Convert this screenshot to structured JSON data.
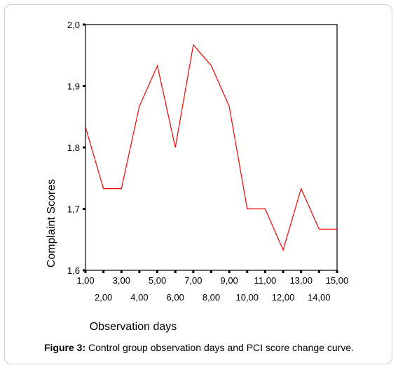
{
  "chart_data": {
    "type": "line",
    "xlabel": "Observation days",
    "ylabel": "Complaint Scores",
    "ylim": [
      1.6,
      2.0
    ],
    "xlim": [
      1,
      15
    ],
    "grid": false,
    "x": [
      1,
      2,
      3,
      4,
      5,
      6,
      7,
      8,
      9,
      10,
      11,
      12,
      13,
      14,
      15
    ],
    "x_tick_labels": [
      "1,00",
      "2,00",
      "3,00",
      "4,00",
      "5,00",
      "6,00",
      "7,00",
      "8,00",
      "9,00",
      "10,00",
      "11,00",
      "12,00",
      "13,00",
      "14,00",
      "15,00"
    ],
    "y_ticks": [
      1.6,
      1.7,
      1.8,
      1.9,
      2.0
    ],
    "y_tick_labels": [
      "1,6",
      "1,7",
      "1,8",
      "1,9",
      "2,0"
    ],
    "series": [
      {
        "color": "#ff0000",
        "values": [
          1.833,
          1.733,
          1.733,
          1.867,
          1.933,
          1.8,
          1.967,
          1.933,
          1.867,
          1.7,
          1.7,
          1.633,
          1.733,
          1.667,
          1.667
        ]
      }
    ]
  },
  "caption": {
    "label": "Figure 3:",
    "text": " Control group observation days and PCI  score change curve."
  }
}
